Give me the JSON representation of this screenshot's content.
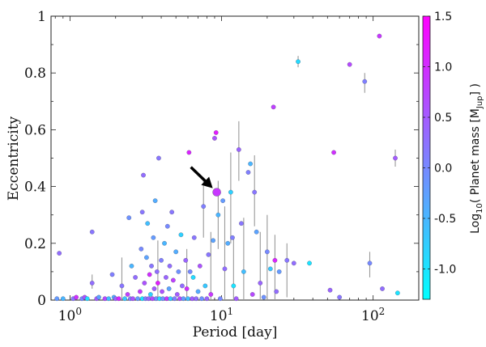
{
  "chart_data": {
    "type": "scatter",
    "title": "",
    "xlabel": "Period [day]",
    "ylabel": "Eccentricity",
    "x_scale": "log",
    "xlim": [
      0.75,
      200
    ],
    "ylim": [
      0,
      1
    ],
    "x_ticks": [
      {
        "value": 1,
        "base": "10",
        "exp": "0"
      },
      {
        "value": 10,
        "base": "10",
        "exp": "1"
      },
      {
        "value": 100,
        "base": "10",
        "exp": "2"
      }
    ],
    "y_ticks": [
      "0",
      "0.2",
      "0.4",
      "0.6",
      "0.8",
      "1"
    ],
    "y_tick_values": [
      0,
      0.2,
      0.4,
      0.6,
      0.8,
      1
    ],
    "grid": false,
    "colorbar": {
      "label": "Log10( Planet mass [MJup] )",
      "label_parts": {
        "pre": "Log",
        "sub1": "10",
        "mid": "( Planet mass [M",
        "sub2": "Jup",
        "post": "] )"
      },
      "range": [
        -1.3,
        1.5
      ],
      "ticks": [
        "1.5",
        "1.0",
        "0.5",
        "0.0",
        "-0.5",
        "-1.0"
      ],
      "tick_values": [
        1.5,
        1.0,
        0.5,
        0.0,
        -0.5,
        -1.0
      ],
      "colormap": [
        "#00ffff",
        "#ff00ff"
      ]
    },
    "annotation": {
      "type": "arrow",
      "points_to": {
        "x": 9.3,
        "y": 0.38
      },
      "color": "#000000"
    },
    "highlight": {
      "x": 9.3,
      "y": 0.38,
      "mass": 0.9
    },
    "points": [
      {
        "x": 0.82,
        "y": 0.005,
        "m": -0.2
      },
      {
        "x": 0.85,
        "y": 0.165,
        "m": 0.3
      },
      {
        "x": 0.9,
        "y": 0.005,
        "m": -0.5
      },
      {
        "x": 1.05,
        "y": 0.005,
        "m": 0.2
      },
      {
        "x": 1.1,
        "y": 0.01,
        "m": 1.0
      },
      {
        "x": 1.2,
        "y": 0.005,
        "m": 0.0
      },
      {
        "x": 1.25,
        "y": 0.01,
        "m": 0.6
      },
      {
        "x": 1.3,
        "y": 0.005,
        "m": -0.9
      },
      {
        "x": 1.4,
        "y": 0.06,
        "m": 0.3
      },
      {
        "x": 1.4,
        "y": 0.24,
        "m": 0.2
      },
      {
        "x": 1.5,
        "y": 0.005,
        "m": 0.5
      },
      {
        "x": 1.55,
        "y": 0.01,
        "m": -0.3
      },
      {
        "x": 1.7,
        "y": 0.005,
        "m": 0.7
      },
      {
        "x": 1.8,
        "y": 0.005,
        "m": -0.6
      },
      {
        "x": 1.9,
        "y": 0.09,
        "m": 0.1
      },
      {
        "x": 1.95,
        "y": 0.01,
        "m": -0.4
      },
      {
        "x": 2.0,
        "y": 0.005,
        "m": 0.4
      },
      {
        "x": 2.1,
        "y": 0.005,
        "m": 1.1
      },
      {
        "x": 2.2,
        "y": 0.05,
        "m": 0.2
      },
      {
        "x": 2.3,
        "y": 0.005,
        "m": -0.7
      },
      {
        "x": 2.4,
        "y": 0.02,
        "m": 0.8
      },
      {
        "x": 2.45,
        "y": 0.29,
        "m": -0.1
      },
      {
        "x": 2.5,
        "y": 0.005,
        "m": 0.1
      },
      {
        "x": 2.55,
        "y": 0.12,
        "m": -0.5
      },
      {
        "x": 2.6,
        "y": 0.005,
        "m": 0.6
      },
      {
        "x": 2.7,
        "y": 0.08,
        "m": 0.3
      },
      {
        "x": 2.8,
        "y": 0.005,
        "m": -0.2
      },
      {
        "x": 2.9,
        "y": 0.03,
        "m": 0.9
      },
      {
        "x": 2.95,
        "y": 0.18,
        "m": 0.0
      },
      {
        "x": 3.0,
        "y": 0.005,
        "m": -1.0
      },
      {
        "x": 3.0,
        "y": 0.31,
        "m": 0.2
      },
      {
        "x": 3.05,
        "y": 0.44,
        "m": 0.3
      },
      {
        "x": 3.1,
        "y": 0.06,
        "m": 0.6
      },
      {
        "x": 3.15,
        "y": 0.005,
        "m": 0.1
      },
      {
        "x": 3.2,
        "y": 0.15,
        "m": -0.3
      },
      {
        "x": 3.25,
        "y": 0.27,
        "m": -0.6
      },
      {
        "x": 3.3,
        "y": 0.005,
        "m": 0.4
      },
      {
        "x": 3.35,
        "y": 0.09,
        "m": 1.0
      },
      {
        "x": 3.4,
        "y": 0.02,
        "m": -0.8
      },
      {
        "x": 3.45,
        "y": 0.12,
        "m": 0.2
      },
      {
        "x": 3.5,
        "y": 0.005,
        "m": 0.7
      },
      {
        "x": 3.55,
        "y": 0.22,
        "m": -0.2
      },
      {
        "x": 3.6,
        "y": 0.04,
        "m": 0.5
      },
      {
        "x": 3.65,
        "y": 0.35,
        "m": -0.4
      },
      {
        "x": 3.7,
        "y": 0.005,
        "m": 0.0
      },
      {
        "x": 3.75,
        "y": 0.1,
        "m": 0.3
      },
      {
        "x": 3.8,
        "y": 0.06,
        "m": 1.2
      },
      {
        "x": 3.85,
        "y": 0.5,
        "m": 0.2
      },
      {
        "x": 3.9,
        "y": 0.005,
        "m": -0.9
      },
      {
        "x": 4.0,
        "y": 0.14,
        "m": 0.1
      },
      {
        "x": 4.05,
        "y": 0.03,
        "m": 0.6
      },
      {
        "x": 4.1,
        "y": 0.005,
        "m": -0.1
      },
      {
        "x": 4.2,
        "y": 0.2,
        "m": -0.5
      },
      {
        "x": 4.3,
        "y": 0.08,
        "m": 0.4
      },
      {
        "x": 4.35,
        "y": 0.005,
        "m": 0.9
      },
      {
        "x": 4.4,
        "y": 0.26,
        "m": 0.0
      },
      {
        "x": 4.5,
        "y": 0.04,
        "m": -0.3
      },
      {
        "x": 4.55,
        "y": 0.12,
        "m": 0.3
      },
      {
        "x": 4.6,
        "y": 0.005,
        "m": -0.7
      },
      {
        "x": 4.7,
        "y": 0.31,
        "m": 0.2
      },
      {
        "x": 4.8,
        "y": 0.07,
        "m": 0.8
      },
      {
        "x": 4.9,
        "y": 0.005,
        "m": 0.1
      },
      {
        "x": 5.0,
        "y": 0.17,
        "m": -0.4
      },
      {
        "x": 5.1,
        "y": 0.02,
        "m": 0.5
      },
      {
        "x": 5.2,
        "y": 0.1,
        "m": -0.1
      },
      {
        "x": 5.3,
        "y": 0.005,
        "m": 0.7
      },
      {
        "x": 5.4,
        "y": 0.23,
        "m": -0.8
      },
      {
        "x": 5.5,
        "y": 0.05,
        "m": 0.3
      },
      {
        "x": 5.6,
        "y": 0.005,
        "m": -0.2
      },
      {
        "x": 5.8,
        "y": 0.14,
        "m": 0.4
      },
      {
        "x": 5.9,
        "y": 0.04,
        "m": 1.0
      },
      {
        "x": 6.0,
        "y": 0.005,
        "m": -0.6
      },
      {
        "x": 6.1,
        "y": 0.52,
        "m": 1.1
      },
      {
        "x": 6.2,
        "y": 0.1,
        "m": 0.0
      },
      {
        "x": 6.4,
        "y": 0.005,
        "m": 0.5
      },
      {
        "x": 6.5,
        "y": 0.08,
        "m": -0.9
      },
      {
        "x": 6.6,
        "y": 0.22,
        "m": 0.2
      },
      {
        "x": 6.8,
        "y": 0.005,
        "m": 0.3
      },
      {
        "x": 7.0,
        "y": 0.03,
        "m": -0.4
      },
      {
        "x": 7.2,
        "y": 0.12,
        "m": 0.6
      },
      {
        "x": 7.4,
        "y": 0.005,
        "m": -0.1
      },
      {
        "x": 7.6,
        "y": 0.33,
        "m": 0.1
      },
      {
        "x": 7.8,
        "y": 0.05,
        "m": -0.7
      },
      {
        "x": 8.0,
        "y": 0.005,
        "m": 0.4
      },
      {
        "x": 8.2,
        "y": 0.16,
        "m": 0.2
      },
      {
        "x": 8.5,
        "y": 0.02,
        "m": 0.9
      },
      {
        "x": 8.8,
        "y": 0.21,
        "m": -0.3
      },
      {
        "x": 9.0,
        "y": 0.57,
        "m": 0.6
      },
      {
        "x": 9.2,
        "y": 0.59,
        "m": 1.2
      },
      {
        "x": 9.5,
        "y": 0.3,
        "m": -0.5
      },
      {
        "x": 9.8,
        "y": 0.005,
        "m": 0.0
      },
      {
        "x": 10.2,
        "y": 0.35,
        "m": -0.2
      },
      {
        "x": 10.5,
        "y": 0.11,
        "m": 0.3
      },
      {
        "x": 11.0,
        "y": 0.2,
        "m": -0.4
      },
      {
        "x": 11.5,
        "y": 0.38,
        "m": -0.8
      },
      {
        "x": 11.8,
        "y": 0.22,
        "m": 0.1
      },
      {
        "x": 12.0,
        "y": 0.05,
        "m": -1.0
      },
      {
        "x": 12.5,
        "y": 0.005,
        "m": 0.5
      },
      {
        "x": 13.0,
        "y": 0.53,
        "m": 0.4
      },
      {
        "x": 13.5,
        "y": 0.27,
        "m": 0.2
      },
      {
        "x": 14.0,
        "y": 0.1,
        "m": -0.6
      },
      {
        "x": 15.0,
        "y": 0.45,
        "m": 0.1
      },
      {
        "x": 15.5,
        "y": 0.48,
        "m": -0.5
      },
      {
        "x": 16.0,
        "y": 0.02,
        "m": 0.7
      },
      {
        "x": 16.5,
        "y": 0.38,
        "m": 0.2
      },
      {
        "x": 17.0,
        "y": 0.24,
        "m": -0.3
      },
      {
        "x": 18.0,
        "y": 0.06,
        "m": 0.4
      },
      {
        "x": 19.0,
        "y": 0.01,
        "m": -0.1
      },
      {
        "x": 20.0,
        "y": 0.17,
        "m": 0.0
      },
      {
        "x": 21.0,
        "y": 0.11,
        "m": -0.7
      },
      {
        "x": 22.0,
        "y": 0.68,
        "m": 0.8
      },
      {
        "x": 22.5,
        "y": 0.14,
        "m": 1.1
      },
      {
        "x": 23.0,
        "y": 0.03,
        "m": 0.3
      },
      {
        "x": 24.0,
        "y": 0.1,
        "m": -0.2
      },
      {
        "x": 27.0,
        "y": 0.14,
        "m": 0.2
      },
      {
        "x": 30.0,
        "y": 0.13,
        "m": 0.3
      },
      {
        "x": 32.0,
        "y": 0.84,
        "m": -0.9
      },
      {
        "x": 38.0,
        "y": 0.13,
        "m": -1.0
      },
      {
        "x": 52.0,
        "y": 0.035,
        "m": 0.4
      },
      {
        "x": 55.0,
        "y": 0.52,
        "m": 1.0
      },
      {
        "x": 60.0,
        "y": 0.01,
        "m": 0.2
      },
      {
        "x": 70.0,
        "y": 0.83,
        "m": 0.7
      },
      {
        "x": 88.0,
        "y": 0.77,
        "m": 0.1
      },
      {
        "x": 95.0,
        "y": 0.13,
        "m": 0.0
      },
      {
        "x": 110.0,
        "y": 0.93,
        "m": 0.9
      },
      {
        "x": 115.0,
        "y": 0.04,
        "m": 0.3
      },
      {
        "x": 140.0,
        "y": 0.5,
        "m": 0.5
      },
      {
        "x": 145.0,
        "y": 0.025,
        "m": -1.0
      }
    ],
    "error_bars": [
      {
        "x": 1.4,
        "y0": 0.04,
        "y1": 0.09
      },
      {
        "x": 2.2,
        "y0": 0.0,
        "y1": 0.15
      },
      {
        "x": 3.8,
        "y0": 0.0,
        "y1": 0.21
      },
      {
        "x": 5.9,
        "y0": 0.0,
        "y1": 0.18
      },
      {
        "x": 7.6,
        "y0": 0.22,
        "y1": 0.43
      },
      {
        "x": 8.5,
        "y0": 0.0,
        "y1": 0.24
      },
      {
        "x": 9.5,
        "y0": 0.18,
        "y1": 0.42
      },
      {
        "x": 10.5,
        "y0": 0.0,
        "y1": 0.33
      },
      {
        "x": 11.5,
        "y0": 0.2,
        "y1": 0.52
      },
      {
        "x": 12.0,
        "y0": 0.0,
        "y1": 0.22
      },
      {
        "x": 13.0,
        "y0": 0.42,
        "y1": 0.63
      },
      {
        "x": 14.0,
        "y0": 0.0,
        "y1": 0.29
      },
      {
        "x": 16.5,
        "y0": 0.26,
        "y1": 0.51
      },
      {
        "x": 18.0,
        "y0": 0.0,
        "y1": 0.24
      },
      {
        "x": 20.0,
        "y0": 0.0,
        "y1": 0.3
      },
      {
        "x": 22.5,
        "y0": 0.0,
        "y1": 0.23
      },
      {
        "x": 27.0,
        "y0": 0.01,
        "y1": 0.2
      },
      {
        "x": 32.0,
        "y0": 0.82,
        "y1": 0.86
      },
      {
        "x": 88.0,
        "y0": 0.73,
        "y1": 0.8
      },
      {
        "x": 95.0,
        "y0": 0.08,
        "y1": 0.17
      },
      {
        "x": 140.0,
        "y0": 0.47,
        "y1": 0.53
      }
    ]
  }
}
